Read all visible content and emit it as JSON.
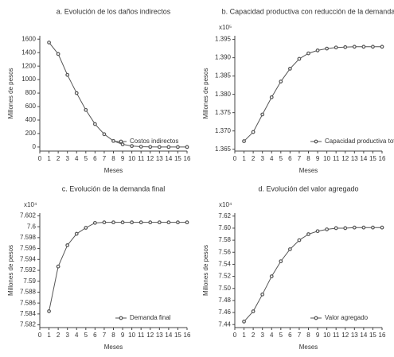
{
  "chart_data": [
    {
      "type": "line",
      "title": "a. Evolución de los daños indirectos",
      "xlabel": "Meses",
      "ylabel": "Millones de pesos",
      "x": [
        1,
        2,
        3,
        4,
        5,
        6,
        7,
        8,
        9,
        10,
        11,
        12,
        13,
        14,
        15,
        16
      ],
      "series": [
        {
          "name": "Costos indirectos",
          "color": "#555555",
          "values": [
            1550,
            1380,
            1070,
            800,
            550,
            340,
            190,
            90,
            40,
            15,
            5,
            2,
            0,
            0,
            0,
            0
          ]
        }
      ],
      "xlim": [
        0,
        16
      ],
      "ylim": [
        -60,
        1650
      ],
      "xticks": [
        0,
        1,
        2,
        3,
        4,
        5,
        6,
        7,
        8,
        9,
        10,
        11,
        12,
        13,
        14,
        15,
        16
      ],
      "yticks": [
        0,
        200,
        400,
        600,
        800,
        1000,
        1200,
        1400,
        1600
      ],
      "legend": "lower right"
    },
    {
      "type": "line",
      "title": "b. Capacidad productiva con reducción de la demanda",
      "xlabel": "Meses",
      "ylabel": "Millones de pesos",
      "y_multiplier": "x10⁵",
      "x": [
        1,
        2,
        3,
        4,
        5,
        6,
        7,
        8,
        9,
        10,
        11,
        12,
        13,
        14,
        15,
        16
      ],
      "series": [
        {
          "name": "Capacidad productiva total",
          "color": "#555555",
          "values": [
            1.3672,
            1.3697,
            1.3745,
            1.3792,
            1.3835,
            1.387,
            1.3897,
            1.3912,
            1.392,
            1.3925,
            1.3928,
            1.3929,
            1.393,
            1.393,
            1.393,
            1.393
          ]
        }
      ],
      "xlim": [
        0,
        16
      ],
      "ylim": [
        1.3645,
        1.396
      ],
      "xticks": [
        0,
        1,
        2,
        3,
        4,
        5,
        6,
        7,
        8,
        9,
        10,
        11,
        12,
        13,
        14,
        15,
        16
      ],
      "yticks": [
        {
          "value": 1.365,
          "label": "1.365"
        },
        {
          "value": 1.37,
          "label": "1.370"
        },
        {
          "value": 1.375,
          "label": "1.375"
        },
        {
          "value": 1.38,
          "label": "1.380"
        },
        {
          "value": 1.385,
          "label": "1.385"
        },
        {
          "value": 1.39,
          "label": "1.390"
        },
        {
          "value": 1.395,
          "label": "1.395"
        }
      ],
      "legend": "lower right"
    },
    {
      "type": "line",
      "title": "c. Evolución de la demanda final",
      "xlabel": "Meses",
      "ylabel": "Millones de pesos",
      "y_multiplier": "x10⁴",
      "x": [
        1,
        2,
        3,
        4,
        5,
        6,
        7,
        8,
        9,
        10,
        11,
        12,
        13,
        14,
        15,
        16
      ],
      "series": [
        {
          "name": "Demanda final",
          "color": "#555555",
          "values": [
            7.5845,
            7.5927,
            7.5966,
            7.5987,
            7.5998,
            7.6007,
            7.6008,
            7.6008,
            7.6008,
            7.6008,
            7.6008,
            7.6008,
            7.6008,
            7.6008,
            7.6008,
            7.6008
          ]
        }
      ],
      "xlim": [
        0,
        16
      ],
      "ylim": [
        7.5815,
        7.6025
      ],
      "xticks": [
        0,
        1,
        2,
        3,
        4,
        5,
        6,
        7,
        8,
        9,
        10,
        11,
        12,
        13,
        14,
        15,
        16
      ],
      "yticks": [
        7.582,
        7.584,
        7.586,
        7.588,
        7.59,
        7.592,
        7.594,
        7.596,
        7.598,
        7.6,
        7.602
      ],
      "legend": "lower right"
    },
    {
      "type": "line",
      "title": "d. Evolución del valor agregado",
      "xlabel": "Meses",
      "ylabel": "Millones de pesos",
      "y_multiplier": "x10⁴",
      "x": [
        1,
        2,
        3,
        4,
        5,
        6,
        7,
        8,
        9,
        10,
        11,
        12,
        13,
        14,
        15,
        16
      ],
      "series": [
        {
          "name": "Valor agregado",
          "color": "#555555",
          "values": [
            7.445,
            7.462,
            7.49,
            7.52,
            7.545,
            7.565,
            7.58,
            7.59,
            7.595,
            7.598,
            7.6,
            7.6,
            7.601,
            7.601,
            7.601,
            7.601
          ]
        }
      ],
      "xlim": [
        0,
        16
      ],
      "ylim": [
        7.435,
        7.625
      ],
      "xticks": [
        0,
        1,
        2,
        3,
        4,
        5,
        6,
        7,
        8,
        9,
        10,
        11,
        12,
        13,
        14,
        15,
        16
      ],
      "yticks": [
        {
          "value": 7.44,
          "label": "7.44"
        },
        {
          "value": 7.46,
          "label": "7.46"
        },
        {
          "value": 7.48,
          "label": "7.48"
        },
        {
          "value": 7.5,
          "label": "7.50"
        },
        {
          "value": 7.52,
          "label": "7.52"
        },
        {
          "value": 7.54,
          "label": "7.54"
        },
        {
          "value": 7.56,
          "label": "7.56"
        },
        {
          "value": 7.58,
          "label": "7.58"
        },
        {
          "value": 7.6,
          "label": "7.60"
        },
        {
          "value": 7.62,
          "label": "7.62"
        }
      ],
      "legend": "lower right"
    }
  ]
}
